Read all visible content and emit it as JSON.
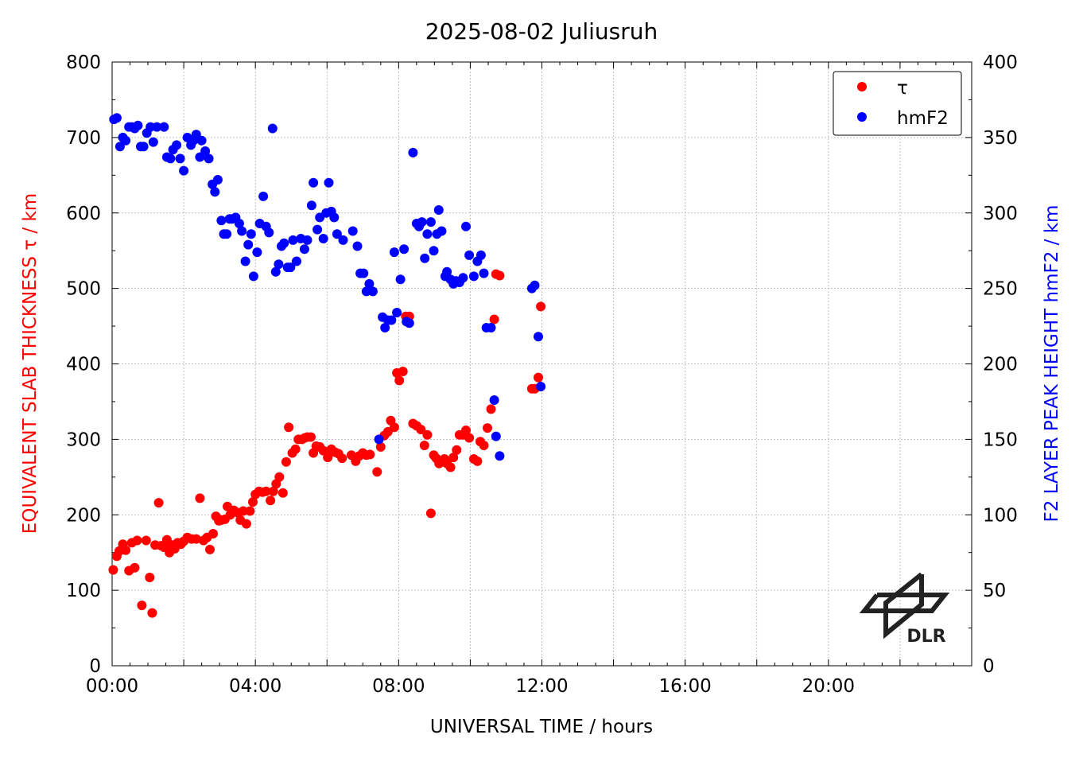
{
  "chart_data": {
    "type": "scatter",
    "title": "2025-08-02 Juliusruh",
    "xlabel": "UNIVERSAL TIME / hours",
    "ylabel_left": "EQUIVALENT SLAB THICKNESS τ / km",
    "ylabel_right": "F2 LAYER PEAK HEIGHT hmF2 / km",
    "xlim": [
      0,
      24
    ],
    "ylim_left": [
      0,
      800
    ],
    "ylim_right": [
      0,
      400
    ],
    "x_ticks": [
      0,
      4,
      8,
      12,
      16,
      20
    ],
    "x_tick_labels": [
      "00:00",
      "04:00",
      "08:00",
      "12:00",
      "16:00",
      "20:00"
    ],
    "y_left_ticks": [
      "0",
      "100",
      "200",
      "300",
      "400",
      "500",
      "600",
      "700",
      "800"
    ],
    "y_right_ticks": [
      "0",
      "50",
      "100",
      "150",
      "200",
      "250",
      "300",
      "350",
      "400"
    ],
    "grid": true,
    "legend_position": "top-right",
    "logo_text": "DLR",
    "colors": {
      "tau": "#ff0000",
      "hmf2": "#0000ff",
      "axis": "#000000",
      "grid": "#b0b0b0"
    },
    "series": [
      {
        "name": "τ",
        "axis": "left",
        "color": "#ff0000",
        "points": [
          [
            0.03,
            127
          ],
          [
            0.13,
            145
          ],
          [
            0.2,
            152
          ],
          [
            0.3,
            161
          ],
          [
            0.38,
            153
          ],
          [
            0.47,
            126
          ],
          [
            0.55,
            163
          ],
          [
            0.63,
            130
          ],
          [
            0.7,
            166
          ],
          [
            0.83,
            80
          ],
          [
            0.95,
            166
          ],
          [
            1.05,
            117
          ],
          [
            1.12,
            70
          ],
          [
            1.2,
            160
          ],
          [
            1.3,
            216
          ],
          [
            1.37,
            159
          ],
          [
            1.45,
            157
          ],
          [
            1.53,
            167
          ],
          [
            1.6,
            150
          ],
          [
            1.68,
            160
          ],
          [
            1.75,
            155
          ],
          [
            1.83,
            163
          ],
          [
            1.92,
            161
          ],
          [
            2.0,
            165
          ],
          [
            2.1,
            170
          ],
          [
            2.22,
            168
          ],
          [
            2.35,
            168
          ],
          [
            2.45,
            222
          ],
          [
            2.55,
            166
          ],
          [
            2.65,
            170
          ],
          [
            2.73,
            154
          ],
          [
            2.82,
            175
          ],
          [
            2.9,
            198
          ],
          [
            2.98,
            192
          ],
          [
            3.05,
            193
          ],
          [
            3.15,
            194
          ],
          [
            3.22,
            211
          ],
          [
            3.3,
            200
          ],
          [
            3.4,
            206
          ],
          [
            3.5,
            203
          ],
          [
            3.58,
            193
          ],
          [
            3.66,
            205
          ],
          [
            3.75,
            188
          ],
          [
            3.85,
            205
          ],
          [
            3.93,
            217
          ],
          [
            4.0,
            227
          ],
          [
            4.1,
            231
          ],
          [
            4.2,
            230
          ],
          [
            4.3,
            231
          ],
          [
            4.42,
            219
          ],
          [
            4.5,
            231
          ],
          [
            4.58,
            241
          ],
          [
            4.67,
            250
          ],
          [
            4.77,
            229
          ],
          [
            4.86,
            270
          ],
          [
            4.93,
            316
          ],
          [
            5.03,
            282
          ],
          [
            5.12,
            287
          ],
          [
            5.2,
            300
          ],
          [
            5.3,
            300
          ],
          [
            5.38,
            302
          ],
          [
            5.45,
            303
          ],
          [
            5.55,
            303
          ],
          [
            5.62,
            282
          ],
          [
            5.7,
            291
          ],
          [
            5.8,
            290
          ],
          [
            5.9,
            285
          ],
          [
            6.02,
            276
          ],
          [
            6.12,
            287
          ],
          [
            6.22,
            283
          ],
          [
            6.32,
            281
          ],
          [
            6.42,
            275
          ],
          [
            6.68,
            279
          ],
          [
            6.8,
            271
          ],
          [
            6.9,
            278
          ],
          [
            7.0,
            282
          ],
          [
            7.1,
            279
          ],
          [
            7.2,
            280
          ],
          [
            7.4,
            257
          ],
          [
            7.5,
            290
          ],
          [
            7.6,
            305
          ],
          [
            7.7,
            310
          ],
          [
            7.78,
            325
          ],
          [
            7.88,
            316
          ],
          [
            7.95,
            388
          ],
          [
            8.02,
            378
          ],
          [
            8.12,
            390
          ],
          [
            8.2,
            463
          ],
          [
            8.3,
            463
          ],
          [
            8.4,
            321
          ],
          [
            8.5,
            318
          ],
          [
            8.62,
            313
          ],
          [
            8.72,
            292
          ],
          [
            8.8,
            306
          ],
          [
            8.9,
            202
          ],
          [
            8.98,
            279
          ],
          [
            9.05,
            275
          ],
          [
            9.13,
            268
          ],
          [
            9.2,
            270
          ],
          [
            9.28,
            274
          ],
          [
            9.35,
            268
          ],
          [
            9.45,
            263
          ],
          [
            9.53,
            276
          ],
          [
            9.62,
            286
          ],
          [
            9.7,
            306
          ],
          [
            9.8,
            306
          ],
          [
            9.88,
            312
          ],
          [
            9.97,
            302
          ],
          [
            10.1,
            274
          ],
          [
            10.2,
            271
          ],
          [
            10.28,
            297
          ],
          [
            10.38,
            292
          ],
          [
            10.48,
            315
          ],
          [
            10.58,
            340
          ],
          [
            10.67,
            459
          ],
          [
            10.72,
            519
          ],
          [
            10.82,
            517
          ],
          [
            11.72,
            367
          ],
          [
            11.8,
            367
          ],
          [
            11.9,
            382
          ],
          [
            11.97,
            476
          ]
        ]
      },
      {
        "name": "hmF2",
        "axis": "right",
        "color": "#0000ff",
        "points": [
          [
            0.05,
            362
          ],
          [
            0.13,
            363
          ],
          [
            0.22,
            344
          ],
          [
            0.3,
            350
          ],
          [
            0.38,
            348
          ],
          [
            0.47,
            357
          ],
          [
            0.55,
            357
          ],
          [
            0.63,
            356
          ],
          [
            0.72,
            358
          ],
          [
            0.8,
            344
          ],
          [
            0.88,
            344
          ],
          [
            0.97,
            353
          ],
          [
            1.07,
            357
          ],
          [
            1.15,
            347
          ],
          [
            1.25,
            357
          ],
          [
            1.45,
            357
          ],
          [
            1.53,
            337
          ],
          [
            1.63,
            336
          ],
          [
            1.7,
            342
          ],
          [
            1.8,
            345
          ],
          [
            1.9,
            336
          ],
          [
            2.0,
            328
          ],
          [
            2.1,
            350
          ],
          [
            2.2,
            345
          ],
          [
            2.27,
            348
          ],
          [
            2.35,
            352
          ],
          [
            2.45,
            337
          ],
          [
            2.5,
            348
          ],
          [
            2.6,
            341
          ],
          [
            2.7,
            336
          ],
          [
            2.8,
            319
          ],
          [
            2.87,
            314
          ],
          [
            2.95,
            322
          ],
          [
            3.05,
            295
          ],
          [
            3.12,
            286
          ],
          [
            3.2,
            286
          ],
          [
            3.28,
            296
          ],
          [
            3.35,
            296
          ],
          [
            3.45,
            297
          ],
          [
            3.55,
            293
          ],
          [
            3.62,
            288
          ],
          [
            3.72,
            268
          ],
          [
            3.8,
            279
          ],
          [
            3.88,
            286
          ],
          [
            3.95,
            258
          ],
          [
            4.05,
            274
          ],
          [
            4.12,
            293
          ],
          [
            4.22,
            311
          ],
          [
            4.3,
            291
          ],
          [
            4.38,
            287
          ],
          [
            4.48,
            356
          ],
          [
            4.57,
            261
          ],
          [
            4.65,
            266
          ],
          [
            4.73,
            278
          ],
          [
            4.8,
            280
          ],
          [
            4.9,
            264
          ],
          [
            4.98,
            264
          ],
          [
            5.05,
            282
          ],
          [
            5.15,
            268
          ],
          [
            5.27,
            283
          ],
          [
            5.37,
            276
          ],
          [
            5.45,
            282
          ],
          [
            5.57,
            305
          ],
          [
            5.62,
            320
          ],
          [
            5.73,
            289
          ],
          [
            5.8,
            297
          ],
          [
            5.9,
            283
          ],
          [
            5.98,
            300
          ],
          [
            6.05,
            320
          ],
          [
            6.12,
            301
          ],
          [
            6.2,
            297
          ],
          [
            6.28,
            286
          ],
          [
            6.45,
            282
          ],
          [
            6.72,
            288
          ],
          [
            6.85,
            278
          ],
          [
            6.93,
            260
          ],
          [
            7.02,
            260
          ],
          [
            7.1,
            248
          ],
          [
            7.18,
            253
          ],
          [
            7.28,
            248
          ],
          [
            7.45,
            150
          ],
          [
            7.55,
            231
          ],
          [
            7.62,
            224
          ],
          [
            7.7,
            229
          ],
          [
            7.8,
            229
          ],
          [
            7.88,
            274
          ],
          [
            7.95,
            234
          ],
          [
            8.05,
            256
          ],
          [
            8.15,
            276
          ],
          [
            8.22,
            228
          ],
          [
            8.3,
            227
          ],
          [
            8.4,
            340
          ],
          [
            8.5,
            293
          ],
          [
            8.57,
            291
          ],
          [
            8.65,
            294
          ],
          [
            8.73,
            270
          ],
          [
            8.8,
            286
          ],
          [
            8.9,
            294
          ],
          [
            8.98,
            275
          ],
          [
            9.07,
            286
          ],
          [
            9.12,
            302
          ],
          [
            9.2,
            288
          ],
          [
            9.3,
            258
          ],
          [
            9.35,
            261
          ],
          [
            9.45,
            256
          ],
          [
            9.53,
            253
          ],
          [
            9.6,
            255
          ],
          [
            9.7,
            254
          ],
          [
            9.8,
            257
          ],
          [
            9.88,
            291
          ],
          [
            9.97,
            272
          ],
          [
            10.1,
            258
          ],
          [
            10.2,
            268
          ],
          [
            10.3,
            272
          ],
          [
            10.38,
            260
          ],
          [
            10.45,
            224
          ],
          [
            10.58,
            224
          ],
          [
            10.67,
            176
          ],
          [
            10.72,
            152
          ],
          [
            10.82,
            139
          ],
          [
            11.72,
            250
          ],
          [
            11.8,
            252
          ],
          [
            11.9,
            218
          ],
          [
            11.97,
            185
          ]
        ]
      }
    ]
  }
}
